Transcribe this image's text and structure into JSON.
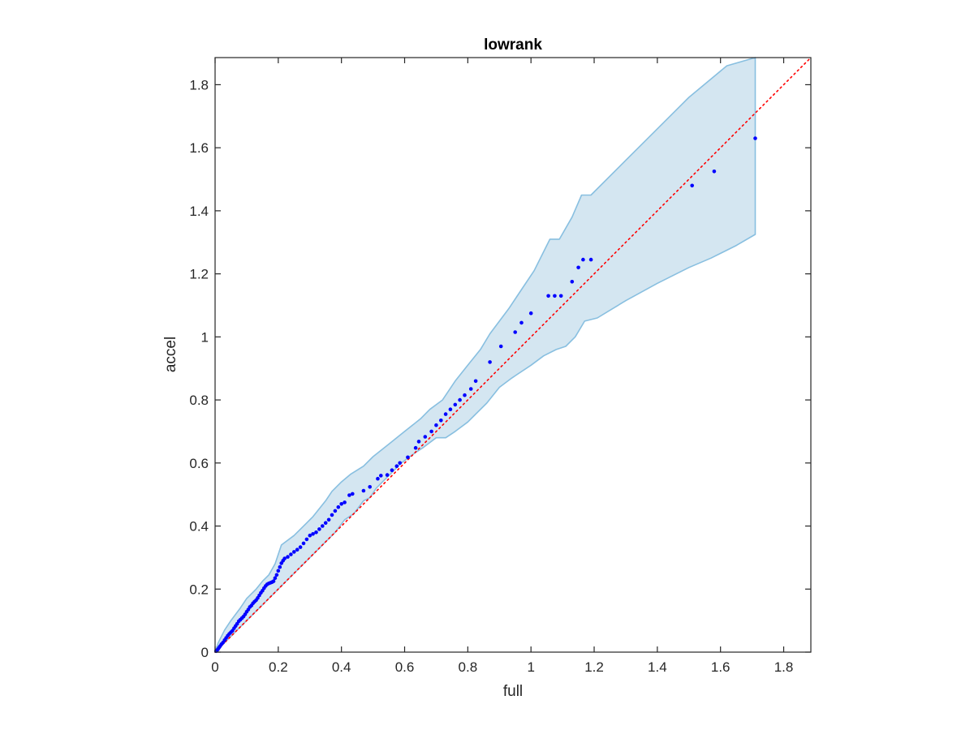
{
  "chart_data": {
    "type": "scatter",
    "title": "lowrank",
    "xlabel": "full",
    "ylabel": "accel",
    "xlim": [
      0,
      1.886
    ],
    "ylim": [
      0,
      1.886
    ],
    "xticks": [
      "0",
      "0.2",
      "0.4",
      "0.6",
      "0.8",
      "1",
      "1.2",
      "1.4",
      "1.6",
      "1.8"
    ],
    "yticks": [
      "0",
      "0.2",
      "0.4",
      "0.6",
      "0.8",
      "1",
      "1.2",
      "1.4",
      "1.6",
      "1.8"
    ],
    "grid": false,
    "colors": {
      "points": "#0000ff",
      "band_fill": "#d4e6f1",
      "band_edge": "#88bfe0",
      "reference_line": "#ff0000",
      "axes": "#262626"
    },
    "reference_line": {
      "type": "y=x",
      "style": "dotted"
    },
    "band_upper": [
      [
        0.0,
        0.0
      ],
      [
        0.01,
        0.03
      ],
      [
        0.03,
        0.07
      ],
      [
        0.05,
        0.1
      ],
      [
        0.08,
        0.14
      ],
      [
        0.1,
        0.17
      ],
      [
        0.13,
        0.2
      ],
      [
        0.15,
        0.225
      ],
      [
        0.17,
        0.245
      ],
      [
        0.19,
        0.28
      ],
      [
        0.21,
        0.34
      ],
      [
        0.25,
        0.37
      ],
      [
        0.29,
        0.41
      ],
      [
        0.31,
        0.43
      ],
      [
        0.35,
        0.48
      ],
      [
        0.37,
        0.51
      ],
      [
        0.4,
        0.54
      ],
      [
        0.43,
        0.565
      ],
      [
        0.47,
        0.59
      ],
      [
        0.5,
        0.62
      ],
      [
        0.55,
        0.66
      ],
      [
        0.6,
        0.7
      ],
      [
        0.65,
        0.74
      ],
      [
        0.68,
        0.77
      ],
      [
        0.72,
        0.8
      ],
      [
        0.76,
        0.86
      ],
      [
        0.8,
        0.91
      ],
      [
        0.84,
        0.96
      ],
      [
        0.87,
        1.01
      ],
      [
        0.9,
        1.05
      ],
      [
        0.93,
        1.09
      ],
      [
        0.97,
        1.15
      ],
      [
        1.01,
        1.21
      ],
      [
        1.06,
        1.31
      ],
      [
        1.09,
        1.31
      ],
      [
        1.13,
        1.38
      ],
      [
        1.16,
        1.45
      ],
      [
        1.19,
        1.45
      ],
      [
        1.3,
        1.56
      ],
      [
        1.4,
        1.66
      ],
      [
        1.5,
        1.76
      ],
      [
        1.62,
        1.86
      ],
      [
        1.71,
        1.886
      ]
    ],
    "band_lower": [
      [
        1.71,
        1.325
      ],
      [
        1.65,
        1.29
      ],
      [
        1.57,
        1.25
      ],
      [
        1.5,
        1.22
      ],
      [
        1.4,
        1.17
      ],
      [
        1.3,
        1.115
      ],
      [
        1.21,
        1.06
      ],
      [
        1.17,
        1.05
      ],
      [
        1.14,
        1.0
      ],
      [
        1.11,
        0.97
      ],
      [
        1.08,
        0.96
      ],
      [
        1.04,
        0.94
      ],
      [
        1.0,
        0.91
      ],
      [
        0.94,
        0.87
      ],
      [
        0.9,
        0.84
      ],
      [
        0.86,
        0.79
      ],
      [
        0.82,
        0.75
      ],
      [
        0.8,
        0.73
      ],
      [
        0.76,
        0.7
      ],
      [
        0.73,
        0.68
      ],
      [
        0.7,
        0.68
      ],
      [
        0.66,
        0.65
      ],
      [
        0.63,
        0.63
      ],
      [
        0.59,
        0.6
      ],
      [
        0.56,
        0.57
      ],
      [
        0.53,
        0.54
      ],
      [
        0.51,
        0.52
      ],
      [
        0.49,
        0.49
      ],
      [
        0.47,
        0.48
      ],
      [
        0.44,
        0.44
      ],
      [
        0.41,
        0.42
      ],
      [
        0.38,
        0.38
      ],
      [
        0.35,
        0.35
      ],
      [
        0.3,
        0.3
      ],
      [
        0.25,
        0.25
      ],
      [
        0.2,
        0.2
      ],
      [
        0.15,
        0.15
      ],
      [
        0.1,
        0.1
      ],
      [
        0.05,
        0.05
      ],
      [
        0.02,
        0.02
      ],
      [
        0.0,
        0.0
      ]
    ],
    "points": [
      [
        0.003,
        0.003
      ],
      [
        0.006,
        0.006
      ],
      [
        0.009,
        0.009
      ],
      [
        0.012,
        0.014
      ],
      [
        0.016,
        0.019
      ],
      [
        0.02,
        0.025
      ],
      [
        0.025,
        0.03
      ],
      [
        0.03,
        0.038
      ],
      [
        0.035,
        0.045
      ],
      [
        0.04,
        0.052
      ],
      [
        0.045,
        0.058
      ],
      [
        0.05,
        0.063
      ],
      [
        0.055,
        0.068
      ],
      [
        0.06,
        0.076
      ],
      [
        0.065,
        0.083
      ],
      [
        0.07,
        0.09
      ],
      [
        0.075,
        0.098
      ],
      [
        0.08,
        0.103
      ],
      [
        0.085,
        0.108
      ],
      [
        0.09,
        0.113
      ],
      [
        0.095,
        0.12
      ],
      [
        0.1,
        0.128
      ],
      [
        0.105,
        0.135
      ],
      [
        0.11,
        0.143
      ],
      [
        0.115,
        0.148
      ],
      [
        0.12,
        0.155
      ],
      [
        0.125,
        0.16
      ],
      [
        0.13,
        0.165
      ],
      [
        0.135,
        0.172
      ],
      [
        0.14,
        0.18
      ],
      [
        0.145,
        0.188
      ],
      [
        0.15,
        0.195
      ],
      [
        0.155,
        0.203
      ],
      [
        0.16,
        0.21
      ],
      [
        0.165,
        0.215
      ],
      [
        0.17,
        0.218
      ],
      [
        0.175,
        0.22
      ],
      [
        0.18,
        0.222
      ],
      [
        0.185,
        0.225
      ],
      [
        0.19,
        0.235
      ],
      [
        0.195,
        0.245
      ],
      [
        0.2,
        0.258
      ],
      [
        0.205,
        0.27
      ],
      [
        0.21,
        0.282
      ],
      [
        0.215,
        0.29
      ],
      [
        0.22,
        0.297
      ],
      [
        0.23,
        0.302
      ],
      [
        0.24,
        0.31
      ],
      [
        0.25,
        0.318
      ],
      [
        0.26,
        0.325
      ],
      [
        0.27,
        0.333
      ],
      [
        0.28,
        0.345
      ],
      [
        0.29,
        0.358
      ],
      [
        0.3,
        0.37
      ],
      [
        0.31,
        0.375
      ],
      [
        0.32,
        0.38
      ],
      [
        0.33,
        0.39
      ],
      [
        0.34,
        0.4
      ],
      [
        0.35,
        0.41
      ],
      [
        0.36,
        0.42
      ],
      [
        0.37,
        0.435
      ],
      [
        0.38,
        0.448
      ],
      [
        0.39,
        0.46
      ],
      [
        0.4,
        0.47
      ],
      [
        0.41,
        0.475
      ],
      [
        0.425,
        0.498
      ],
      [
        0.435,
        0.502
      ],
      [
        0.47,
        0.512
      ],
      [
        0.49,
        0.524
      ],
      [
        0.515,
        0.55
      ],
      [
        0.525,
        0.56
      ],
      [
        0.545,
        0.562
      ],
      [
        0.56,
        0.577
      ],
      [
        0.575,
        0.59
      ],
      [
        0.585,
        0.6
      ],
      [
        0.61,
        0.618
      ],
      [
        0.635,
        0.648
      ],
      [
        0.645,
        0.668
      ],
      [
        0.665,
        0.683
      ],
      [
        0.685,
        0.7
      ],
      [
        0.7,
        0.72
      ],
      [
        0.715,
        0.735
      ],
      [
        0.73,
        0.755
      ],
      [
        0.745,
        0.77
      ],
      [
        0.76,
        0.785
      ],
      [
        0.775,
        0.8
      ],
      [
        0.79,
        0.815
      ],
      [
        0.81,
        0.835
      ],
      [
        0.825,
        0.86
      ],
      [
        0.87,
        0.92
      ],
      [
        0.905,
        0.97
      ],
      [
        0.95,
        1.015
      ],
      [
        0.97,
        1.045
      ],
      [
        1.0,
        1.075
      ],
      [
        1.055,
        1.13
      ],
      [
        1.075,
        1.13
      ],
      [
        1.095,
        1.13
      ],
      [
        1.13,
        1.175
      ],
      [
        1.15,
        1.22
      ],
      [
        1.165,
        1.245
      ],
      [
        1.19,
        1.245
      ],
      [
        1.51,
        1.48
      ],
      [
        1.58,
        1.525
      ],
      [
        1.71,
        1.63
      ]
    ]
  }
}
